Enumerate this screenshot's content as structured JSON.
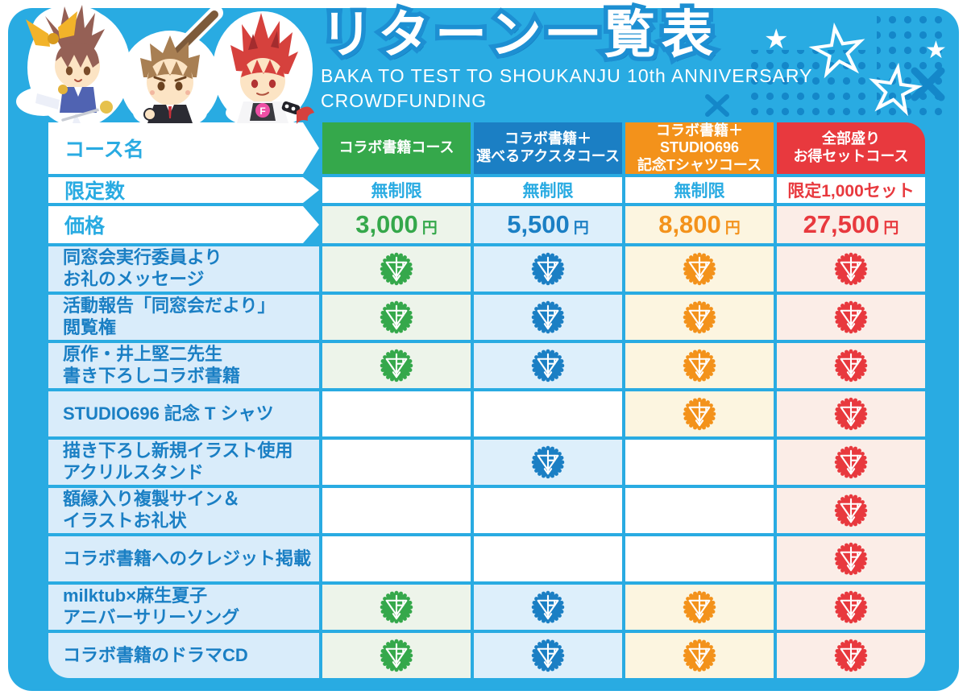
{
  "header": {
    "title": "リターン一覧表",
    "subtitle_line1": "BAKA TO TEST TO SHOUKANJU 10th ANNIVERSARY",
    "subtitle_line2": "CROWDFUNDING"
  },
  "row_labels": {
    "course_name": "コース名",
    "limited_count": "限定数",
    "price": "価格"
  },
  "courses": [
    {
      "name": "コラボ書籍コース",
      "limit": "無制限",
      "price_value": "3,000",
      "price_unit": "円",
      "color": "#35A84B",
      "tint": "#EDF4EA",
      "limit_color": "#29ABE2"
    },
    {
      "name": "コラボ書籍＋\n選べるアクスタコース",
      "limit": "無制限",
      "price_value": "5,500",
      "price_unit": "円",
      "color": "#1B7FC4",
      "tint": "#DDEFFB",
      "limit_color": "#29ABE2"
    },
    {
      "name": "コラボ書籍＋\nSTUDIO696\n記念Tシャツコース",
      "limit": "無制限",
      "price_value": "8,800",
      "price_unit": "円",
      "color": "#F3921B",
      "tint": "#FCF5E0",
      "limit_color": "#29ABE2"
    },
    {
      "name": "全部盛り\nお得セットコース",
      "limit": "限定1,000セット",
      "price_value": "27,500",
      "price_unit": "円",
      "color": "#E8393E",
      "tint": "#FBEDE7",
      "limit_color": "#E8393E"
    }
  ],
  "features": [
    {
      "label": "同窓会実行委員より\nお礼のメッセージ",
      "included": [
        true,
        true,
        true,
        true
      ]
    },
    {
      "label": "活動報告「同窓会だより」\n閲覧権",
      "included": [
        true,
        true,
        true,
        true
      ]
    },
    {
      "label": "原作・井上堅二先生\n書き下ろしコラボ書籍",
      "included": [
        true,
        true,
        true,
        true
      ]
    },
    {
      "label": "STUDIO696 記念 T シャツ",
      "included": [
        false,
        false,
        true,
        true
      ]
    },
    {
      "label": "描き下ろし新規イラスト使用\nアクリルスタンド",
      "included": [
        false,
        true,
        false,
        true
      ]
    },
    {
      "label": "額縁入り複製サイン＆\nイラストお礼状",
      "included": [
        false,
        false,
        false,
        true
      ]
    },
    {
      "label": "コラボ書籍へのクレジット掲載",
      "included": [
        false,
        false,
        false,
        true
      ]
    },
    {
      "label": "milktub×麻生夏子\nアニバーサリーソング",
      "included": [
        true,
        true,
        true,
        true
      ]
    },
    {
      "label": "コラボ書籍のドラマCD",
      "included": [
        true,
        true,
        true,
        true
      ]
    }
  ],
  "icons": {
    "stamp": "fantasia-seal-stamp-icon",
    "stars": "star-icon",
    "cross": "cross-mark-icon"
  },
  "colors": {
    "card_bg": "#29ABE2",
    "decoration": "#1487C9",
    "row_label_text": "#29ABE2",
    "feature_label_bg": "#D9ECFA",
    "feature_label_text": "#1A7FC4",
    "empty_cell_bg": "#FFFFFF"
  }
}
